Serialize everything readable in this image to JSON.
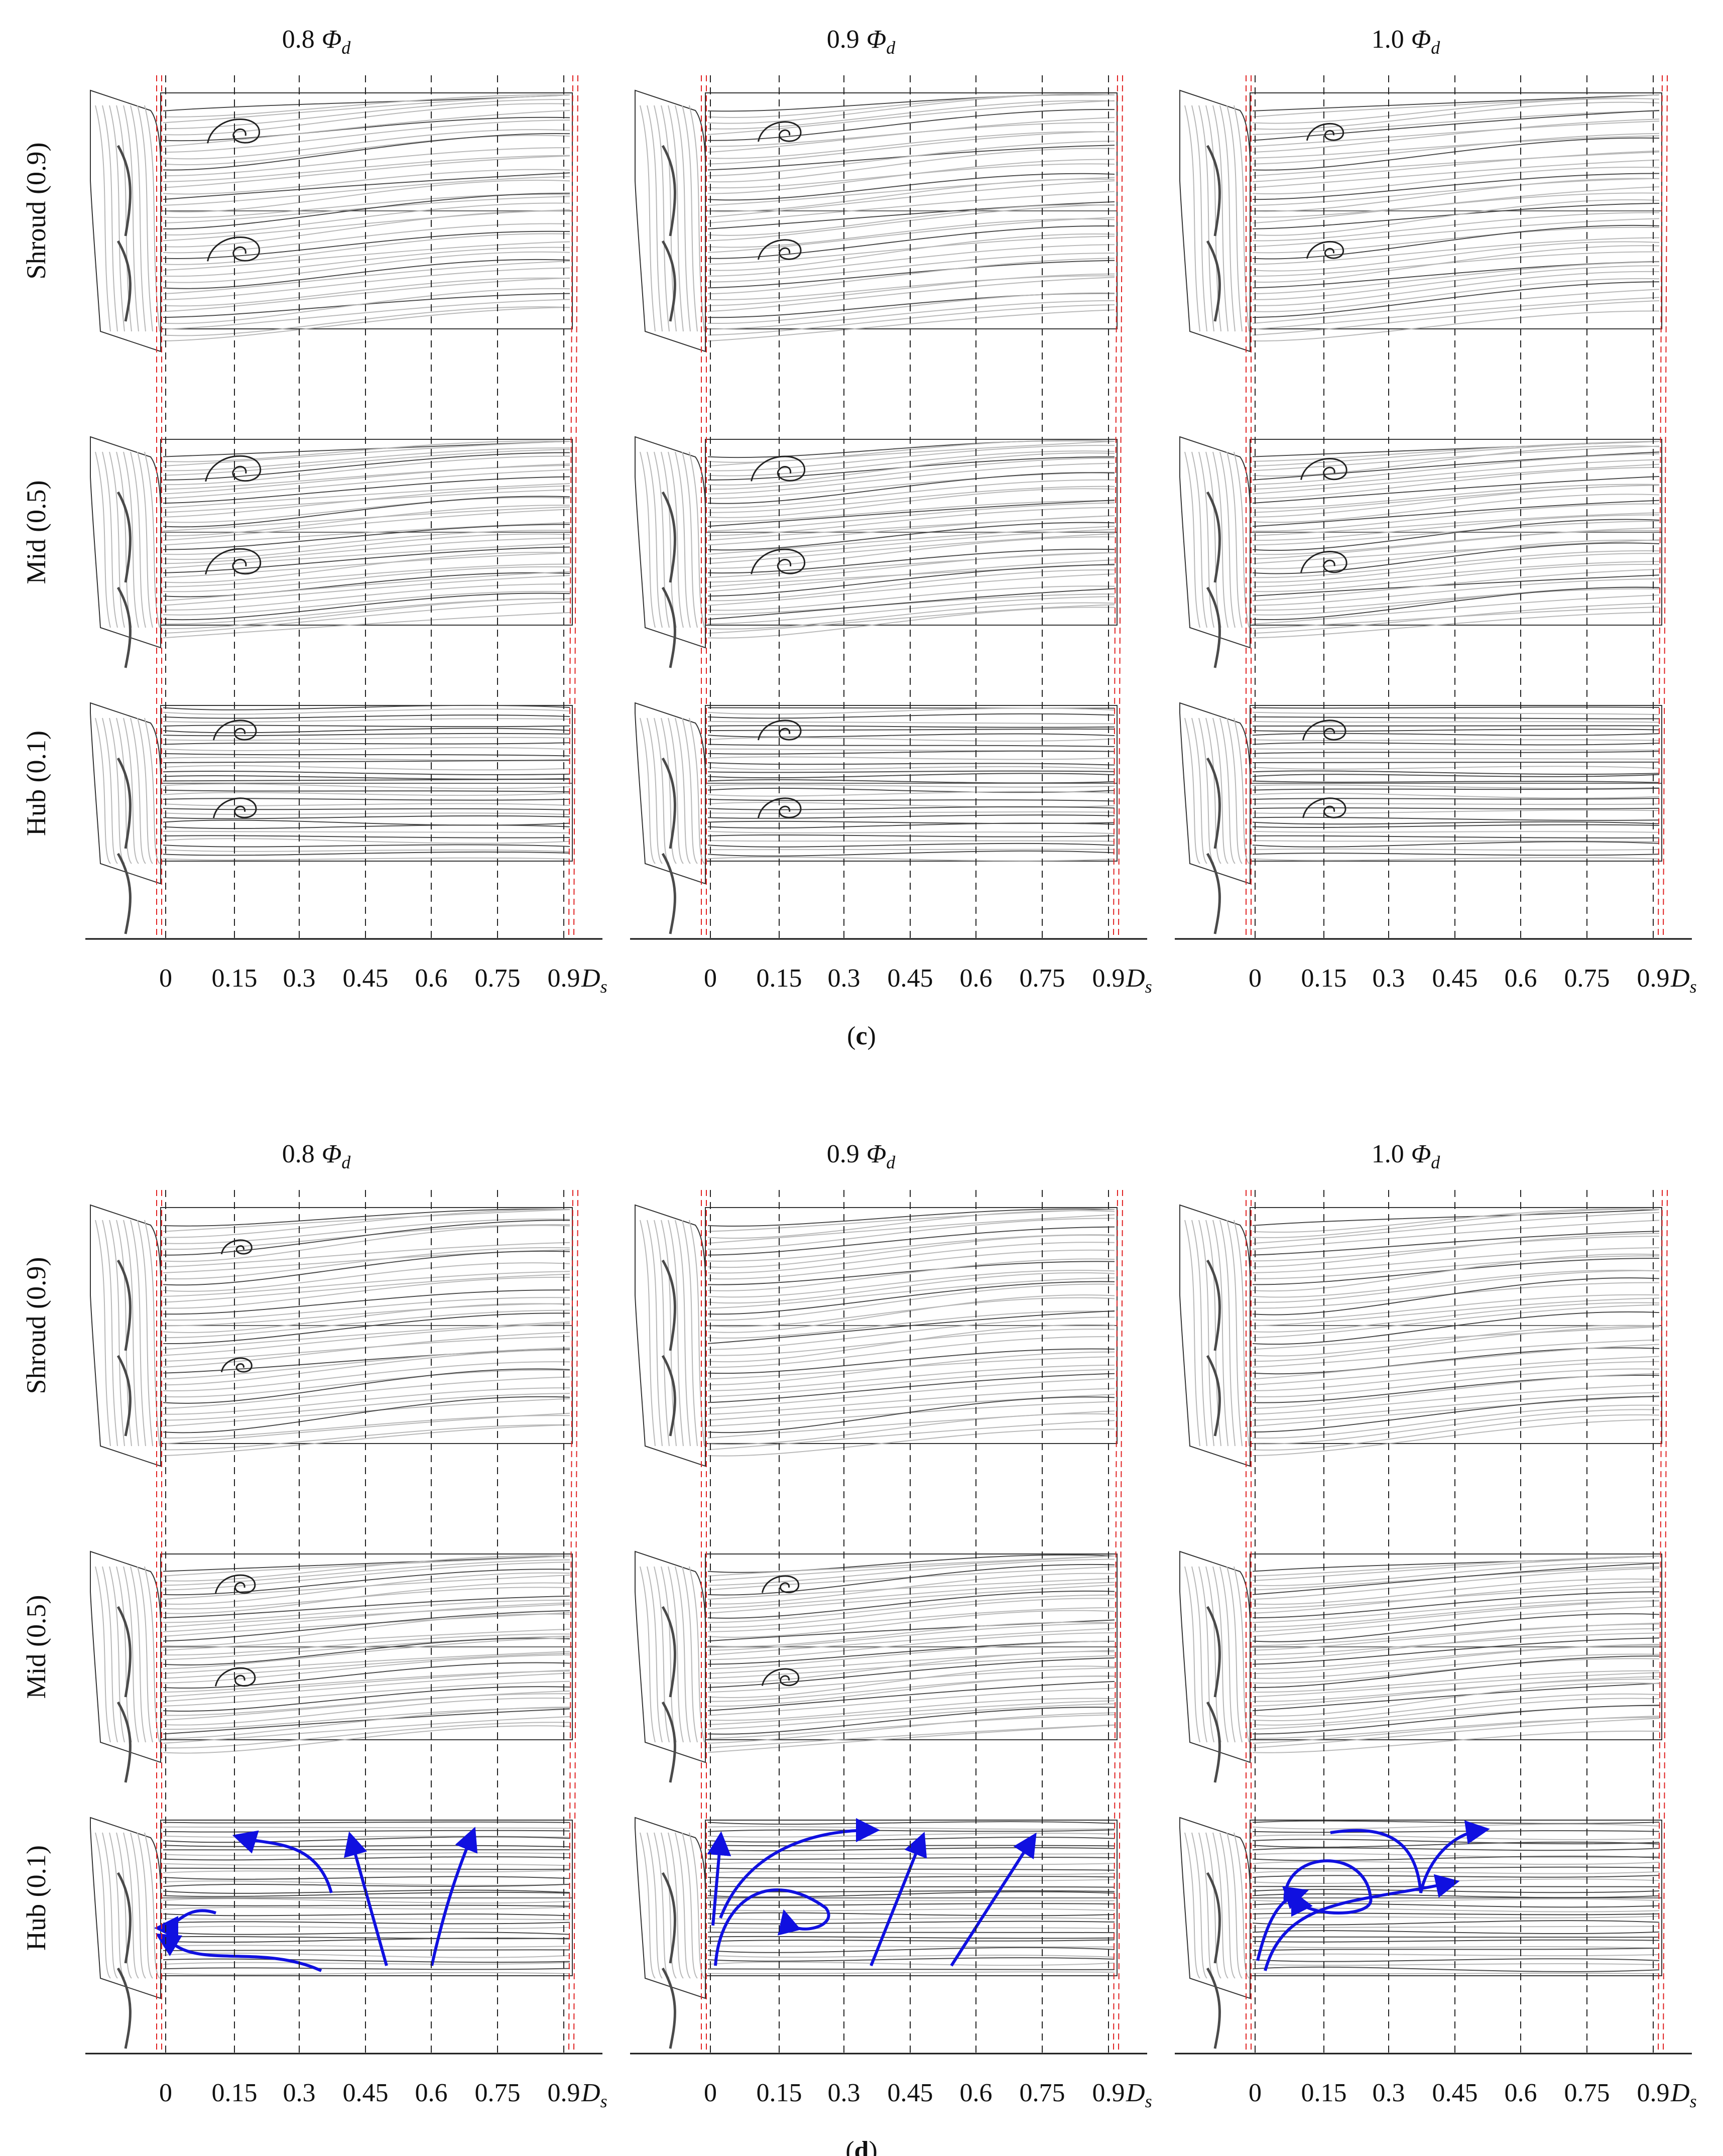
{
  "figure": {
    "panels": [
      {
        "label": "c",
        "columns": [
          {
            "coeff": "0.8",
            "symbol": "Φ",
            "sub": "d"
          },
          {
            "coeff": "0.9",
            "symbol": "Φ",
            "sub": "d"
          },
          {
            "coeff": "1.0",
            "symbol": "Φ",
            "sub": "d"
          }
        ],
        "rows": [
          {
            "label": "Shroud (0.9)",
            "kind": "shroud",
            "vortex": [
              0.9,
              0.6,
              0.4
            ]
          },
          {
            "label": "Mid (0.5)",
            "kind": "mid",
            "vortex": [
              1.0,
              0.95,
              0.7
            ]
          },
          {
            "label": "Hub (0.1)",
            "kind": "hub",
            "vortex": [
              0.6,
              0.6,
              0.6
            ]
          }
        ],
        "blue_arrows": [
          0,
          0,
          0
        ]
      },
      {
        "label": "d",
        "columns": [
          {
            "coeff": "0.8",
            "symbol": "Φ",
            "sub": "d"
          },
          {
            "coeff": "0.9",
            "symbol": "Φ",
            "sub": "d"
          },
          {
            "coeff": "1.0",
            "symbol": "Φ",
            "sub": "d"
          }
        ],
        "rows": [
          {
            "label": "Shroud (0.9)",
            "kind": "shroud",
            "vortex": [
              0.2,
              0.0,
              0.0
            ]
          },
          {
            "label": "Mid (0.5)",
            "kind": "mid",
            "vortex": [
              0.5,
              0.4,
              0.0
            ]
          },
          {
            "label": "Hub (0.1)",
            "kind": "hub",
            "vortex": [
              0.0,
              0.0,
              0.0
            ]
          }
        ],
        "blue_arrows": [
          1,
          2,
          3
        ]
      }
    ],
    "axis": {
      "ticks": [
        "0",
        "0.15",
        "0.3",
        "0.45",
        "0.6",
        "0.75",
        "0.9"
      ],
      "tick_values": [
        0,
        0.15,
        0.3,
        0.45,
        0.6,
        0.75,
        0.9
      ],
      "unit_symbol": "D",
      "unit_sub": "s"
    },
    "colors": {
      "streamline_light": "#b8b8b8",
      "streamline_dark": "#4a4a4a",
      "outline": "#333333",
      "dashed_grid": "#222222",
      "red_dashed": "#e02020",
      "blue_arrow": "#1010e0"
    }
  }
}
